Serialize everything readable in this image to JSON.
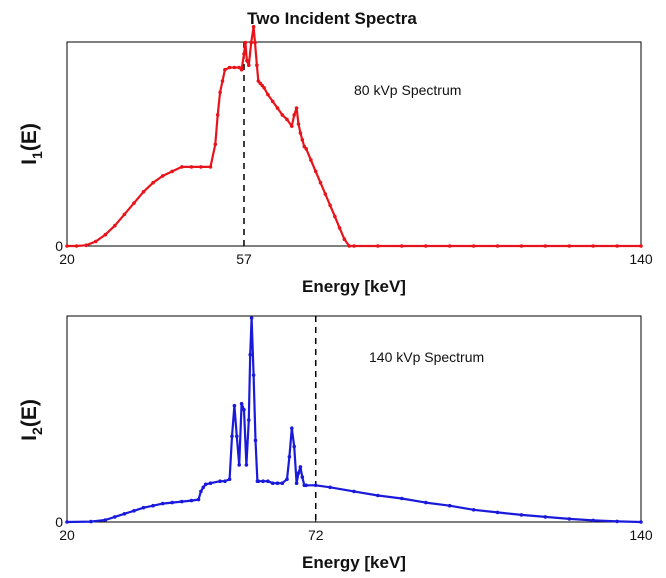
{
  "figure_title": "Two Incident Spectra",
  "chart_data": [
    {
      "type": "line",
      "title": "Two Incident Spectra",
      "xlabel": "Energy [keV]",
      "ylabel": "I_1(E)",
      "ylabel_main": "I",
      "ylabel_sub": "1",
      "ylabel_tail": "(E)",
      "xlim": [
        20,
        140
      ],
      "ylim": [
        0,
        1.0
      ],
      "xticks": [
        20,
        57,
        140
      ],
      "yticks": [
        0
      ],
      "grid": false,
      "annotation": "80 kVp Spectrum",
      "marker_line_x": 57,
      "color": "#e8141b",
      "series": [
        {
          "x": [
            20,
            22,
            24,
            26,
            28,
            30,
            32,
            34,
            36,
            38,
            40,
            42,
            44,
            46,
            48,
            50,
            51,
            51.5,
            52,
            52.5,
            53,
            54,
            55,
            56,
            56.5,
            57,
            57.3,
            57.6,
            58,
            58.5,
            59,
            59.3,
            59.7,
            60,
            60.4,
            60.8,
            61.2,
            62,
            63,
            64,
            65,
            66,
            67,
            67.5,
            68,
            68.4,
            68.8,
            69.2,
            69.6,
            70,
            71,
            72,
            73,
            74,
            75,
            76,
            77,
            78,
            79,
            80,
            85,
            90,
            95,
            100,
            105,
            110,
            115,
            120,
            125,
            130,
            135,
            140
          ],
          "y": [
            0,
            0,
            0.003,
            0.02,
            0.05,
            0.09,
            0.14,
            0.19,
            0.24,
            0.28,
            0.31,
            0.33,
            0.35,
            0.35,
            0.35,
            0.35,
            0.45,
            0.58,
            0.68,
            0.73,
            0.78,
            0.79,
            0.79,
            0.79,
            0.78,
            0.85,
            0.9,
            0.82,
            0.8,
            0.9,
            0.97,
            0.9,
            0.8,
            0.73,
            0.72,
            0.71,
            0.7,
            0.67,
            0.64,
            0.61,
            0.58,
            0.56,
            0.53,
            0.58,
            0.61,
            0.54,
            0.5,
            0.47,
            0.44,
            0.43,
            0.38,
            0.33,
            0.28,
            0.23,
            0.18,
            0.13,
            0.08,
            0.03,
            0,
            0,
            0,
            0,
            0,
            0,
            0,
            0,
            0,
            0,
            0,
            0,
            0,
            0
          ]
        }
      ]
    },
    {
      "type": "line",
      "xlabel": "Energy [keV]",
      "ylabel": "I_2(E)",
      "ylabel_main": "I",
      "ylabel_sub": "2",
      "ylabel_tail": "(E)",
      "xlim": [
        20,
        140
      ],
      "ylim": [
        0,
        1.0
      ],
      "xticks": [
        20,
        72,
        140
      ],
      "yticks": [
        0
      ],
      "grid": false,
      "annotation": "140 kVp Spectrum",
      "marker_line_x": 72,
      "color": "#1a1adb",
      "series": [
        {
          "x": [
            20,
            25,
            28,
            30,
            32,
            34,
            36,
            38,
            40,
            42,
            44,
            46,
            47.5,
            48,
            48.5,
            49,
            50,
            52,
            53,
            54,
            54.5,
            55,
            55.5,
            56,
            56.5,
            57,
            57.5,
            58,
            58.3,
            58.6,
            59,
            59.4,
            59.8,
            60,
            61,
            62,
            63,
            64,
            65,
            66,
            66.5,
            67,
            67.5,
            68,
            68.4,
            68.8,
            69.2,
            69.6,
            70,
            72,
            75,
            80,
            85,
            90,
            95,
            100,
            105,
            110,
            115,
            120,
            125,
            130,
            135,
            140
          ],
          "y": [
            0,
            0.002,
            0.01,
            0.025,
            0.04,
            0.055,
            0.07,
            0.08,
            0.09,
            0.095,
            0.1,
            0.105,
            0.11,
            0.15,
            0.17,
            0.185,
            0.19,
            0.2,
            0.2,
            0.21,
            0.42,
            0.57,
            0.42,
            0.28,
            0.58,
            0.55,
            0.28,
            0.5,
            0.82,
            1.0,
            0.72,
            0.4,
            0.2,
            0.2,
            0.2,
            0.2,
            0.19,
            0.19,
            0.19,
            0.21,
            0.32,
            0.46,
            0.37,
            0.19,
            0.24,
            0.27,
            0.22,
            0.18,
            0.18,
            0.18,
            0.17,
            0.15,
            0.13,
            0.115,
            0.095,
            0.08,
            0.06,
            0.047,
            0.035,
            0.025,
            0.015,
            0.008,
            0.003,
            0
          ]
        }
      ]
    }
  ]
}
